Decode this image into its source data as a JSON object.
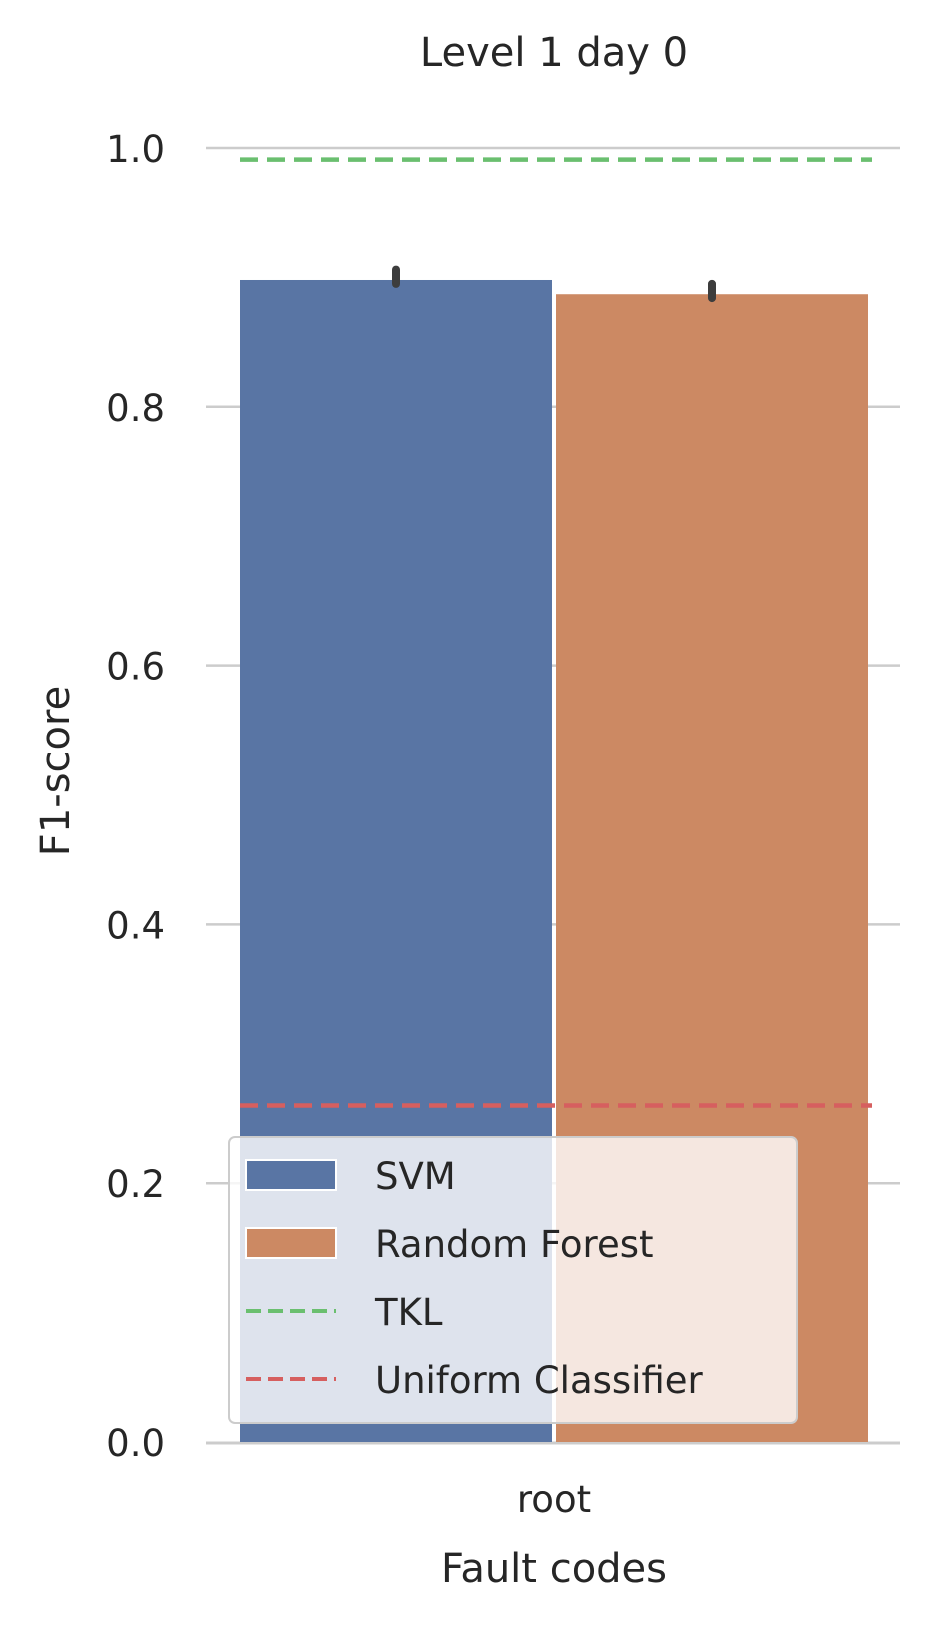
{
  "chart_data": {
    "type": "bar",
    "title": "Level 1 day 0",
    "xlabel": "Fault codes",
    "ylabel": "F1-score",
    "categories": [
      "root"
    ],
    "ylim": [
      0,
      1.0
    ],
    "yticks": [
      "0.0",
      "0.2",
      "0.4",
      "0.6",
      "0.8",
      "1.0"
    ],
    "grid": true,
    "legend_position": "bottom-left",
    "series": [
      {
        "name": "SVM",
        "values": [
          0.898
        ],
        "error": [
          [
            0.895,
            0.906
          ]
        ],
        "color": "#5975a4"
      },
      {
        "name": "Random Forest",
        "values": [
          0.887
        ],
        "error": [
          [
            0.884,
            0.895
          ]
        ],
        "color": "#cc8963"
      }
    ],
    "reference_lines": [
      {
        "name": "TKL",
        "value": 0.991,
        "color": "#6abf6f",
        "style": "dashed"
      },
      {
        "name": "Uniform Classifier",
        "value": 0.26,
        "color": "#d65f5f",
        "style": "dashed"
      }
    ]
  }
}
